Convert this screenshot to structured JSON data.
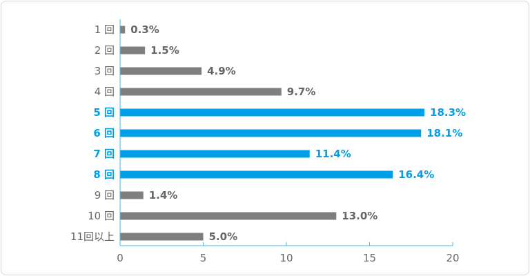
{
  "chart_data": {
    "type": "bar",
    "orientation": "horizontal",
    "categories": [
      "1 回",
      "2 回",
      "3 回",
      "4 回",
      "5 回",
      "6 回",
      "7 回",
      "8 回",
      "9 回",
      "10 回",
      "11回以上"
    ],
    "values": [
      0.3,
      1.5,
      4.9,
      9.7,
      18.3,
      18.1,
      11.4,
      16.4,
      1.4,
      13.0,
      5.0
    ],
    "value_labels": [
      "0.3%",
      "1.5%",
      "4.9%",
      "9.7%",
      "18.3%",
      "18.1%",
      "11.4%",
      "16.4%",
      "1.4%",
      "13.0%",
      "5.0%"
    ],
    "highlighted": [
      false,
      false,
      false,
      false,
      true,
      true,
      true,
      true,
      false,
      false,
      false
    ],
    "xlim": [
      0,
      20
    ],
    "xticks": [
      0,
      5,
      10,
      15,
      20
    ],
    "title": "",
    "xlabel": "",
    "ylabel": "",
    "grid": false,
    "colors": {
      "normal_bar": "#7f7f7f",
      "highlight_bar": "#00a0e9",
      "normal_text": "#666666",
      "highlight_text": "#00a0e9",
      "axis": "#46b4e6"
    }
  }
}
